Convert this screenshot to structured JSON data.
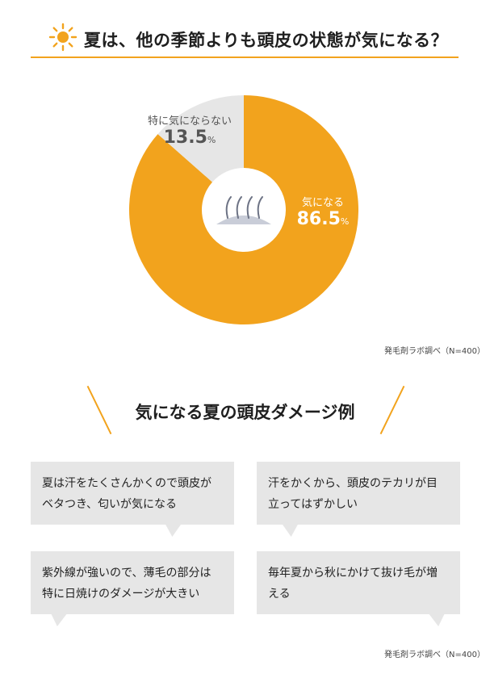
{
  "header": {
    "title": "夏は、他の季節よりも頭皮の状態が気になる？",
    "icon": "sun-icon"
  },
  "chart_data": {
    "type": "pie",
    "title": "夏は、他の季節よりも頭皮の状態が気になる？",
    "slices": [
      {
        "label": "気になる",
        "value": 86.5,
        "unit": "%",
        "color": "#f2a31d"
      },
      {
        "label": "特に気にならない",
        "value": 13.5,
        "unit": "%",
        "color": "#e6e6e6"
      }
    ],
    "center_icon": "scalp-hair-icon"
  },
  "source_1": "発毛剤ラボ調べ（N=400）",
  "section2": {
    "title": "気になる夏の頭皮ダメージ例",
    "bubbles": [
      {
        "line1": "夏は汗をたくさんかくので頭皮が",
        "line2": "ベタつき、匂いが気になる"
      },
      {
        "line1": "汗をかくから、頭皮のテカリが目",
        "line2": "立ってはずかしい"
      },
      {
        "line1": "紫外線が強いので、薄毛の部分は",
        "line2": "特に日焼けのダメージが大きい"
      },
      {
        "line1": "毎年夏から秋にかけて抜け毛が増",
        "line2": "える"
      }
    ]
  },
  "source_2": "発毛剤ラボ調べ（N=400）",
  "colors": {
    "accent": "#f2a31d",
    "grey": "#e6e6e6"
  }
}
